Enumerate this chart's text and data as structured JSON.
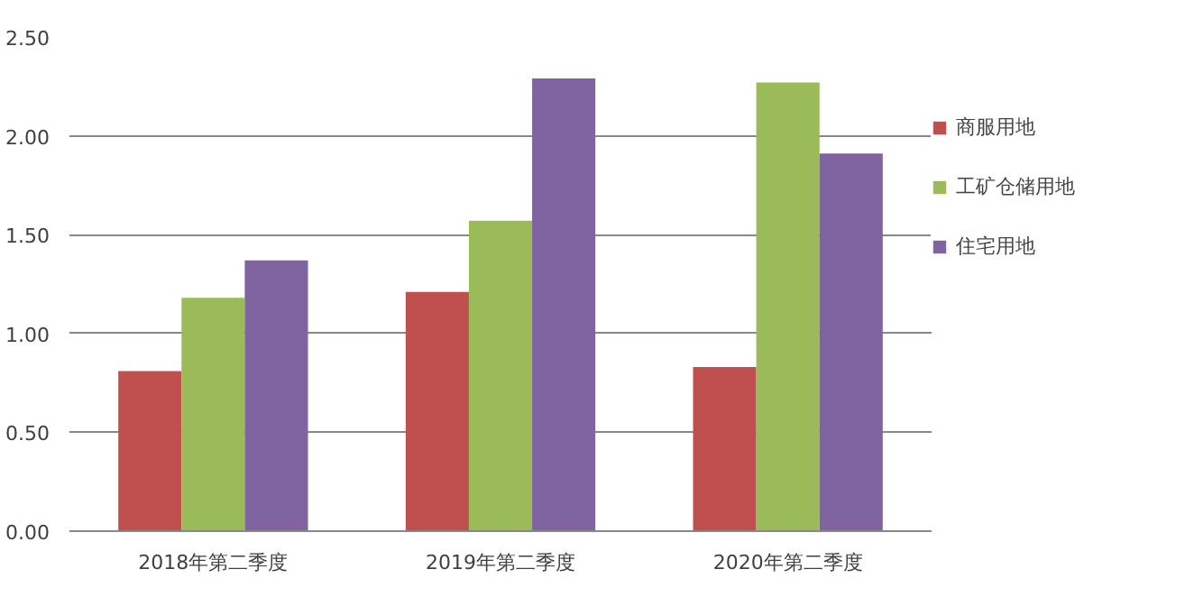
{
  "chart_data": {
    "type": "bar",
    "categories": [
      "2018年第二季度",
      "2019年第二季度",
      "2020年第二季度"
    ],
    "series": [
      {
        "name": "商服用地",
        "color": "#c0504d",
        "values": [
          0.81,
          1.21,
          0.83
        ]
      },
      {
        "name": "工矿仓储用地",
        "color": "#9bbb59",
        "values": [
          1.18,
          1.57,
          2.27
        ]
      },
      {
        "name": "住宅用地",
        "color": "#8064a2",
        "values": [
          1.37,
          2.29,
          1.91
        ]
      }
    ],
    "ylim": [
      0,
      2.5
    ],
    "yticks": [
      {
        "value": 0,
        "label": "0.00"
      },
      {
        "value": 0.5,
        "label": "0.50"
      },
      {
        "value": 1,
        "label": "1.00"
      },
      {
        "value": 1.5,
        "label": "1.50"
      },
      {
        "value": 2,
        "label": "2.00"
      },
      {
        "value": 2.5,
        "label": "2.50"
      }
    ],
    "grid": "y",
    "legend": "right"
  }
}
